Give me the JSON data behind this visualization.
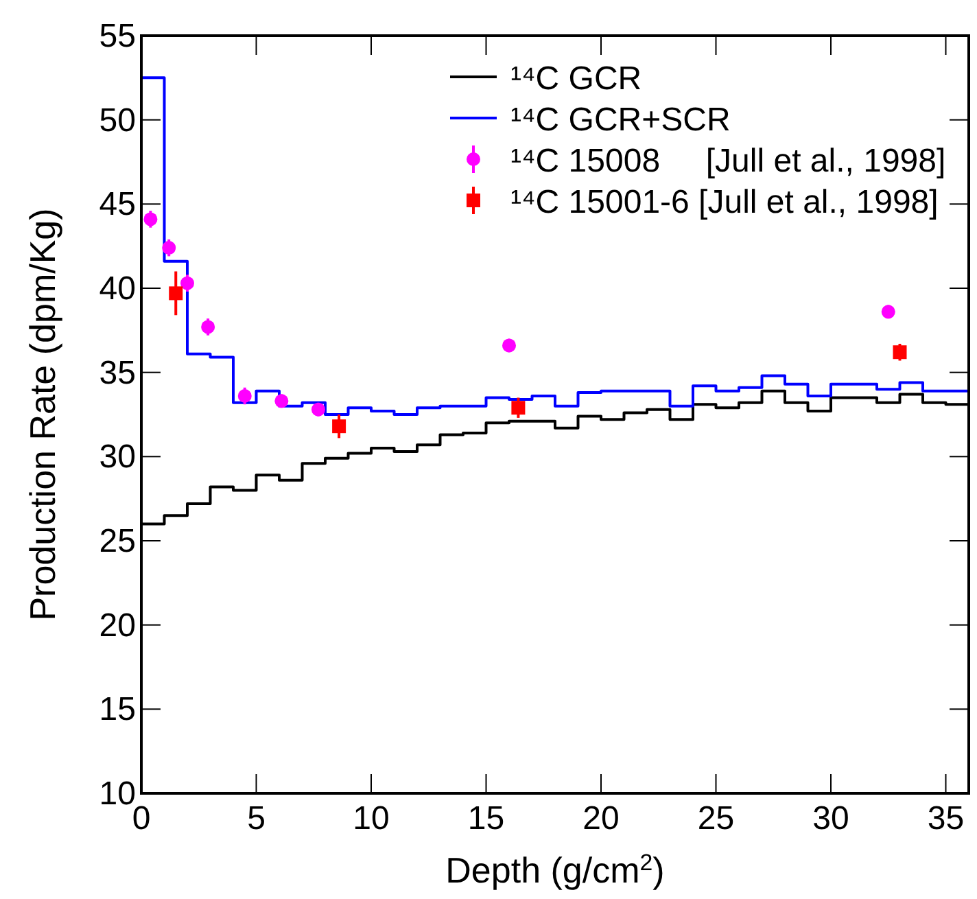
{
  "chart_data": {
    "type": "histogram",
    "xlabel": "Depth (g/cm$^{2}$)",
    "ylabel": "Production Rate (dpm/Kg)",
    "xlim": [
      0,
      36
    ],
    "ylim": [
      10,
      55
    ],
    "xticks": [
      0,
      5,
      10,
      15,
      20,
      25,
      30,
      35
    ],
    "yticks": [
      10,
      15,
      20,
      25,
      30,
      35,
      40,
      45,
      50,
      55
    ],
    "grid": false,
    "legend": "top right",
    "bins": [
      0,
      1,
      2,
      3,
      4,
      5,
      6,
      7,
      8,
      9,
      10,
      11,
      12,
      13,
      14,
      15,
      16,
      17,
      18,
      19,
      20,
      21,
      22,
      23,
      24,
      25,
      26,
      27,
      28,
      29,
      30,
      31,
      32,
      33,
      34,
      35,
      36
    ],
    "series": [
      {
        "name": "¹⁴C GCR",
        "color": "#000000",
        "values": [
          26.0,
          26.5,
          27.2,
          28.2,
          28.0,
          28.9,
          28.6,
          29.6,
          29.9,
          30.2,
          30.5,
          30.3,
          30.7,
          31.3,
          31.4,
          32.0,
          32.1,
          32.1,
          31.7,
          32.4,
          32.2,
          32.6,
          32.8,
          32.2,
          33.1,
          32.9,
          33.2,
          33.9,
          33.2,
          32.7,
          33.5,
          33.5,
          33.2,
          33.7,
          33.2,
          33.1
        ]
      },
      {
        "name": "¹⁴C GCR+SCR",
        "color": "#0000ff",
        "values": [
          52.5,
          41.6,
          36.1,
          35.9,
          33.2,
          33.9,
          33.0,
          33.2,
          32.5,
          32.9,
          32.7,
          32.5,
          32.9,
          33.0,
          33.0,
          33.5,
          33.4,
          33.6,
          33.0,
          33.8,
          33.9,
          33.9,
          33.9,
          33.0,
          34.2,
          33.9,
          34.1,
          34.8,
          34.3,
          33.6,
          34.3,
          34.3,
          34.0,
          34.4,
          33.9,
          33.9
        ]
      },
      {
        "type": "scatter",
        "name": "¹⁴C 15008     [Jull et al., 1998]",
        "color": "#ff00ff",
        "marker": "circle",
        "x": [
          0.4,
          1.2,
          2.0,
          2.9,
          4.5,
          6.1,
          7.7,
          16.0,
          32.5
        ],
        "values": [
          44.1,
          42.4,
          40.3,
          37.7,
          33.6,
          33.3,
          32.8,
          36.6,
          38.6
        ],
        "errors": [
          0.5,
          0.5,
          0.5,
          0.5,
          0.5,
          0.4,
          0.4,
          0.4,
          0.4
        ]
      },
      {
        "type": "scatter",
        "name": "¹⁴C 15001-6 [Jull et al., 1998]",
        "color": "#ff0000",
        "marker": "square",
        "x": [
          1.5,
          8.6,
          16.4,
          33.0
        ],
        "values": [
          39.7,
          31.8,
          32.9,
          36.2
        ],
        "errors": [
          1.3,
          0.7,
          0.6,
          0.5
        ]
      }
    ]
  }
}
